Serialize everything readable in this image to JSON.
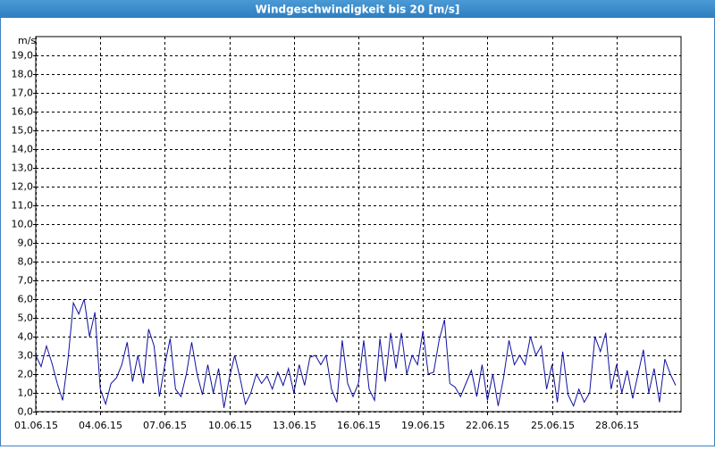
{
  "chart_data": {
    "type": "line",
    "title": "Windgeschwindigkeit bis 20 [m/s]",
    "y_label": "m/s",
    "color": "#1010a0",
    "grid": true,
    "xlim": [
      1,
      31
    ],
    "xticks": [
      {
        "value": 1,
        "label": "01.06.15"
      },
      {
        "value": 4,
        "label": "04.06.15"
      },
      {
        "value": 7,
        "label": "07.06.15"
      },
      {
        "value": 10,
        "label": "10.06.15"
      },
      {
        "value": 13,
        "label": "13.06.15"
      },
      {
        "value": 16,
        "label": "16.06.15"
      },
      {
        "value": 19,
        "label": "19.06.15"
      },
      {
        "value": 22,
        "label": "22.06.15"
      },
      {
        "value": 25,
        "label": "25.06.15"
      },
      {
        "value": 28,
        "label": "28.06.15"
      }
    ],
    "ylim": [
      0,
      20
    ],
    "yticks": [
      {
        "value": 0,
        "label": "0,0"
      },
      {
        "value": 1,
        "label": "1,0"
      },
      {
        "value": 2,
        "label": "2,0"
      },
      {
        "value": 3,
        "label": "3,0"
      },
      {
        "value": 4,
        "label": "4,0"
      },
      {
        "value": 5,
        "label": "5,0"
      },
      {
        "value": 6,
        "label": "6,0"
      },
      {
        "value": 7,
        "label": "7,0"
      },
      {
        "value": 8,
        "label": "8,0"
      },
      {
        "value": 9,
        "label": "9,0"
      },
      {
        "value": 10,
        "label": "10,0"
      },
      {
        "value": 11,
        "label": "11,0"
      },
      {
        "value": 12,
        "label": "12,0"
      },
      {
        "value": 13,
        "label": "13,0"
      },
      {
        "value": 14,
        "label": "14,0"
      },
      {
        "value": 15,
        "label": "15,0"
      },
      {
        "value": 16,
        "label": "16,0"
      },
      {
        "value": 17,
        "label": "17,0"
      },
      {
        "value": 18,
        "label": "18,0"
      },
      {
        "value": 19,
        "label": "19,0"
      }
    ],
    "x": [
      1,
      1.25,
      1.5,
      1.75,
      2,
      2.25,
      2.5,
      2.75,
      3,
      3.25,
      3.5,
      3.75,
      4,
      4.25,
      4.5,
      4.75,
      5,
      5.25,
      5.5,
      5.75,
      6,
      6.25,
      6.5,
      6.75,
      7,
      7.25,
      7.5,
      7.75,
      8,
      8.25,
      8.5,
      8.75,
      9,
      9.25,
      9.5,
      9.75,
      10,
      10.25,
      10.5,
      10.75,
      11,
      11.25,
      11.5,
      11.75,
      12,
      12.25,
      12.5,
      12.75,
      13,
      13.25,
      13.5,
      13.75,
      14,
      14.25,
      14.5,
      14.75,
      15,
      15.25,
      15.5,
      15.75,
      16,
      16.25,
      16.5,
      16.75,
      17,
      17.25,
      17.5,
      17.75,
      18,
      18.25,
      18.5,
      18.75,
      19,
      19.25,
      19.5,
      19.75,
      20,
      20.25,
      20.5,
      20.75,
      21,
      21.25,
      21.5,
      21.75,
      22,
      22.25,
      22.5,
      22.75,
      23,
      23.25,
      23.5,
      23.75,
      24,
      24.25,
      24.5,
      24.75,
      25,
      25.25,
      25.5,
      25.75,
      26,
      26.25,
      26.5,
      26.75,
      27,
      27.25,
      27.5,
      27.75,
      28,
      28.25,
      28.5,
      28.75,
      29,
      29.25,
      29.5,
      29.75,
      30,
      30.25,
      30.5,
      30.75
    ],
    "values": [
      3.0,
      2.4,
      3.5,
      2.6,
      1.5,
      0.6,
      2.8,
      5.8,
      5.2,
      6.0,
      4.0,
      5.3,
      1.2,
      0.4,
      1.5,
      1.8,
      2.5,
      3.7,
      1.6,
      3.0,
      1.5,
      4.4,
      3.5,
      0.8,
      2.5,
      3.9,
      1.2,
      0.8,
      2.0,
      3.7,
      2.0,
      0.9,
      2.5,
      1.0,
      2.3,
      0.2,
      1.8,
      3.0,
      1.8,
      0.4,
      1.0,
      2.0,
      1.5,
      1.9,
      1.2,
      2.1,
      1.4,
      2.3,
      1.0,
      2.5,
      1.4,
      2.9,
      3.0,
      2.5,
      3.0,
      1.2,
      0.5,
      3.8,
      1.5,
      0.8,
      1.5,
      3.8,
      1.2,
      0.6,
      3.9,
      1.6,
      4.2,
      2.3,
      4.2,
      2.0,
      3.0,
      2.5,
      4.3,
      2.0,
      2.1,
      3.8,
      4.9,
      1.5,
      1.3,
      0.8,
      1.5,
      2.2,
      0.8,
      2.5,
      0.6,
      2.0,
      0.3,
      1.8,
      3.8,
      2.5,
      3.0,
      2.5,
      4.0,
      3.0,
      3.5,
      1.2,
      2.5,
      0.5,
      3.2,
      0.9,
      0.3,
      1.2,
      0.5,
      1.0,
      4.0,
      3.2,
      4.2,
      1.2,
      2.5,
      1.0,
      2.2,
      0.7,
      2.0,
      3.3,
      1.0,
      2.3,
      0.5,
      2.8,
      2.0,
      1.4
    ]
  }
}
